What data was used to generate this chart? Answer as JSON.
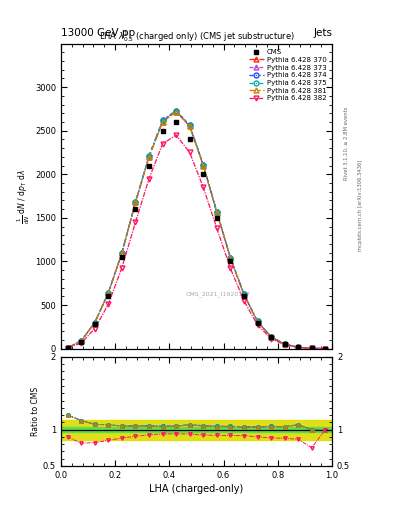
{
  "title_top": "13000 GeV pp",
  "title_right": "Jets",
  "plot_title": "LHA $\\lambda^{1}_{0.5}$ (charged only) (CMS jet substructure)",
  "watermark": "CMS_2021_I1920187",
  "rivet_label": "Rivet 3.1.10, ≥ 2.8M events",
  "arxiv_label": "mcplots.cern.ch [arXiv:1306.3436]",
  "xlabel": "LHA (charged-only)",
  "xlim": [
    0,
    1
  ],
  "ylim_main": [
    0,
    3500
  ],
  "ylim_ratio": [
    0.5,
    2
  ],
  "cms_x": [
    0.025,
    0.075,
    0.125,
    0.175,
    0.225,
    0.275,
    0.325,
    0.375,
    0.425,
    0.475,
    0.525,
    0.575,
    0.625,
    0.675,
    0.725,
    0.775,
    0.825,
    0.875,
    0.925,
    0.975
  ],
  "cms_y": [
    10,
    80,
    280,
    600,
    1050,
    1600,
    2100,
    2500,
    2600,
    2400,
    2000,
    1500,
    1000,
    600,
    300,
    130,
    50,
    15,
    4,
    1
  ],
  "p370_y": [
    12,
    90,
    300,
    640,
    1100,
    1680,
    2200,
    2600,
    2720,
    2550,
    2100,
    1560,
    1040,
    620,
    310,
    135,
    52,
    16,
    4,
    1
  ],
  "p373_y": [
    12,
    90,
    300,
    640,
    1100,
    1680,
    2210,
    2620,
    2730,
    2560,
    2110,
    1570,
    1045,
    625,
    312,
    136,
    52,
    16,
    4,
    1
  ],
  "p374_y": [
    12,
    90,
    300,
    640,
    1100,
    1680,
    2210,
    2620,
    2730,
    2560,
    2110,
    1570,
    1045,
    625,
    312,
    136,
    52,
    16,
    4,
    1
  ],
  "p375_y": [
    12,
    90,
    300,
    640,
    1100,
    1680,
    2210,
    2620,
    2730,
    2560,
    2110,
    1570,
    1045,
    625,
    312,
    136,
    52,
    16,
    4,
    1
  ],
  "p381_y": [
    12,
    90,
    300,
    640,
    1100,
    1680,
    2200,
    2600,
    2720,
    2550,
    2100,
    1560,
    1040,
    620,
    310,
    135,
    52,
    16,
    4,
    1
  ],
  "p382_y": [
    9,
    65,
    230,
    510,
    930,
    1450,
    1950,
    2350,
    2450,
    2250,
    1850,
    1380,
    920,
    550,
    270,
    115,
    44,
    13,
    3,
    1
  ],
  "cms_color": "#000000",
  "p370_color": "#ff2200",
  "p373_color": "#bb44cc",
  "p374_color": "#2244ff",
  "p375_color": "#00aaaa",
  "p381_color": "#bb8800",
  "p382_color": "#ff1166",
  "band_green": "#55dd55",
  "band_yellow": "#dddd00",
  "ratio_green_lo": 0.96,
  "ratio_green_hi": 1.04,
  "ratio_yellow_lo": 0.85,
  "ratio_yellow_hi": 1.13
}
